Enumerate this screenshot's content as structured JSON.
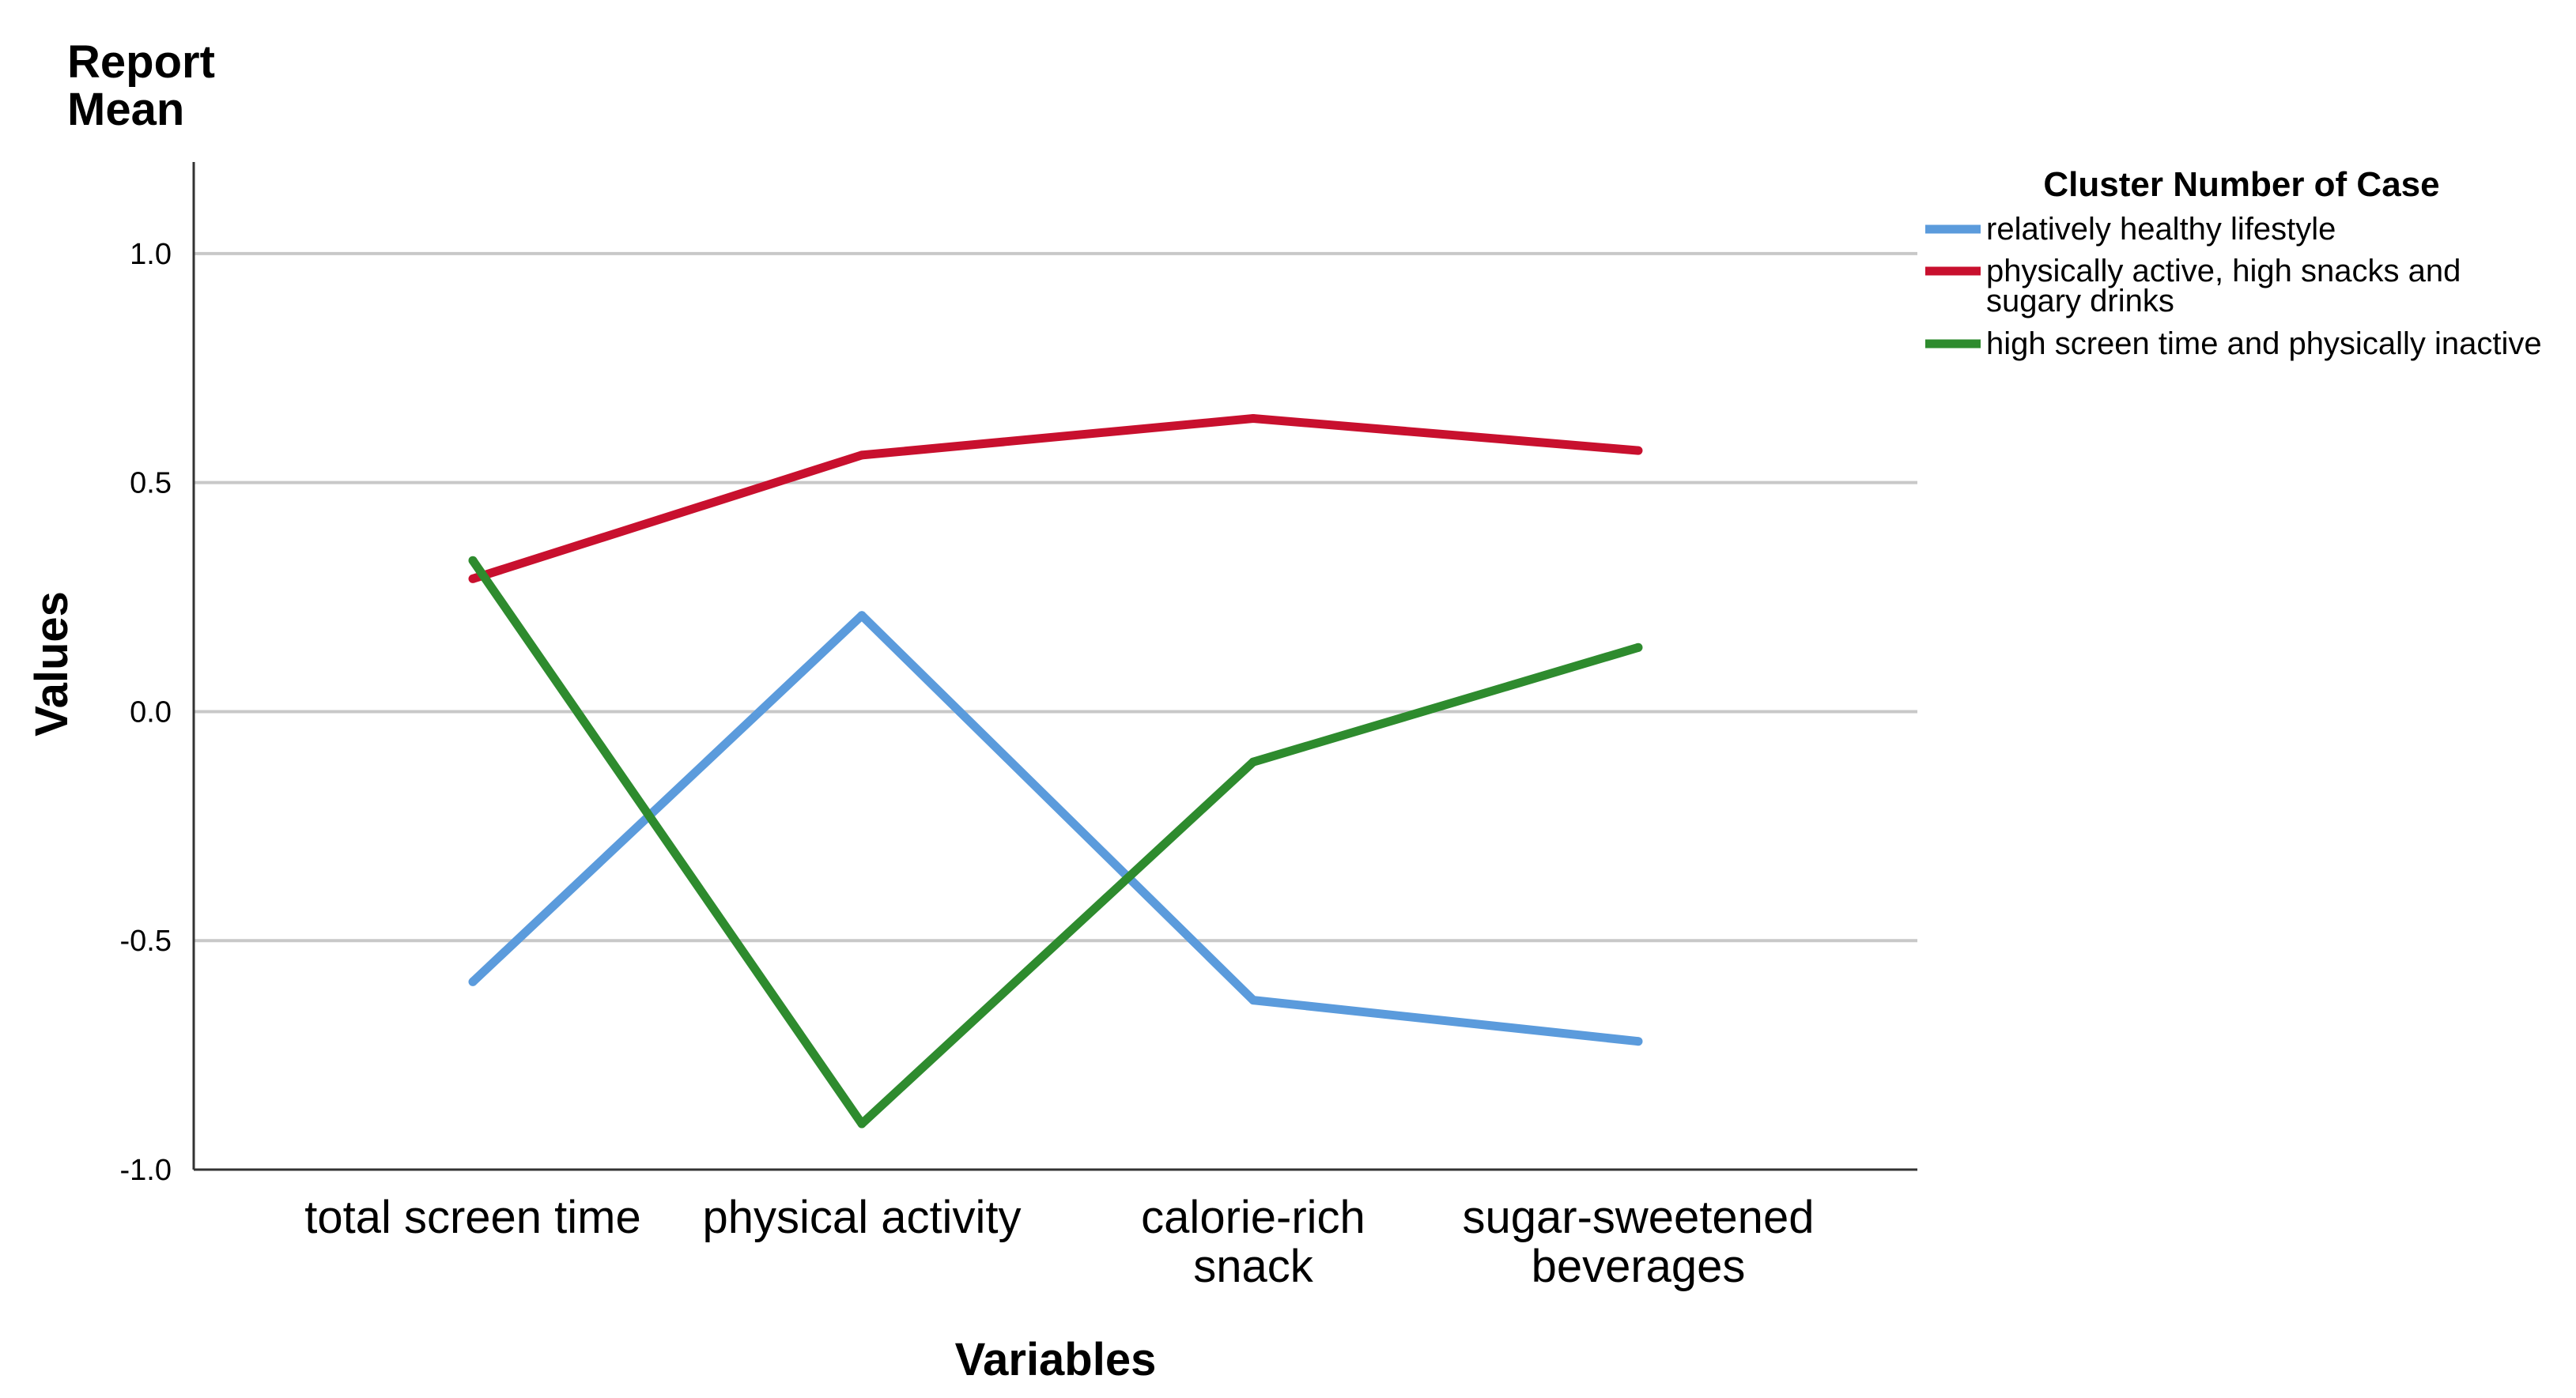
{
  "chart_data": {
    "type": "line",
    "title": [
      "Report",
      "Mean"
    ],
    "xlabel": "Variables",
    "ylabel": "Values",
    "ylim": [
      -1.0,
      1.2
    ],
    "yticks": [
      -1.0,
      -0.5,
      0.0,
      0.5,
      1.0
    ],
    "ytick_labels": [
      "-1.0",
      "-0.5",
      "0.0",
      "0.5",
      "1.0"
    ],
    "grid": "horizontal",
    "legend_position": "top-right",
    "categories": [
      [
        "total screen time"
      ],
      [
        "physical activity"
      ],
      [
        "calorie-rich",
        "snack"
      ],
      [
        "sugar-sweetened",
        "beverages"
      ]
    ],
    "legend_title": "Cluster Number of Case",
    "series": [
      {
        "name": "relatively healthy lifestyle",
        "legend_lines": [
          "relatively healthy lifestyle"
        ],
        "color": "#5b9bdc",
        "values": [
          -0.59,
          0.21,
          -0.63,
          -0.72
        ]
      },
      {
        "name": "physically active, high snacks and sugary drinks",
        "legend_lines": [
          "physically active, high snacks and",
          "sugary drinks"
        ],
        "color": "#c8102e",
        "values": [
          0.29,
          0.56,
          0.64,
          0.57
        ]
      },
      {
        "name": "high screen time and physically inactive",
        "legend_lines": [
          "high screen time and physically inactive"
        ],
        "color": "#2e8b2e",
        "values": [
          0.33,
          -0.9,
          -0.11,
          0.14
        ]
      }
    ]
  }
}
